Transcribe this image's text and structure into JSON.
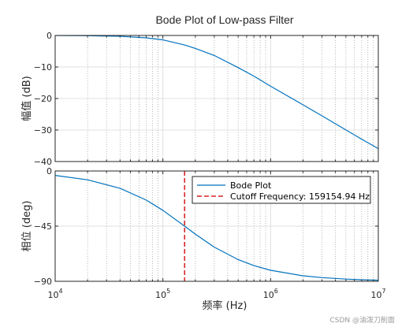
{
  "chart_data": [
    {
      "type": "line",
      "title": "Bode Plot of Low-pass Filter",
      "ylabel": "幅值 (dB)",
      "xscale": "log",
      "xlim": [
        10000,
        10000000
      ],
      "ylim": [
        -40,
        0
      ],
      "yticks": [
        0,
        -10,
        -20,
        -30,
        -40
      ],
      "ytick_labels": [
        "0",
        "−10",
        "−20",
        "−30",
        "−40"
      ],
      "grid": true,
      "series": [
        {
          "x": [
            10000,
            20000,
            40000,
            70000,
            100000,
            159154.94,
            200000,
            300000,
            500000,
            700000,
            1000000,
            2000000,
            3000000,
            5000000,
            7000000,
            10000000
          ],
          "y": [
            -0.02,
            -0.07,
            -0.27,
            -0.75,
            -1.4,
            -3.01,
            -4.1,
            -6.35,
            -10.2,
            -12.9,
            -16.1,
            -22.0,
            -25.5,
            -29.97,
            -32.9,
            -35.9
          ],
          "color": "#0072bd"
        }
      ]
    },
    {
      "type": "line",
      "ylabel": "相位 (deg)",
      "xlabel": "频率 (Hz)",
      "xscale": "log",
      "xlim": [
        10000,
        10000000
      ],
      "ylim": [
        -90,
        0
      ],
      "yticks": [
        0,
        -45,
        -90
      ],
      "ytick_labels": [
        "0",
        "−45",
        "−90"
      ],
      "xticks": [
        10000,
        100000,
        1000000,
        10000000
      ],
      "xtick_labels": [
        {
          "base": "10",
          "exp": "4"
        },
        {
          "base": "10",
          "exp": "5"
        },
        {
          "base": "10",
          "exp": "6"
        },
        {
          "base": "10",
          "exp": "7"
        }
      ],
      "grid": true,
      "legend": "top-right",
      "series": [
        {
          "name": "Bode Plot",
          "x": [
            10000,
            20000,
            40000,
            70000,
            100000,
            159154.94,
            200000,
            300000,
            500000,
            700000,
            1000000,
            2000000,
            3000000,
            5000000,
            7000000,
            10000000
          ],
          "y": [
            -3.6,
            -7.2,
            -14.1,
            -23.7,
            -32.1,
            -45.0,
            -51.5,
            -62.1,
            -72.3,
            -77.2,
            -81.0,
            -85.5,
            -87.0,
            -88.2,
            -88.7,
            -89.1
          ],
          "color": "#0072bd",
          "style": "solid"
        },
        {
          "name": "Cutoff Frequency: 159154.94 Hz",
          "x": [
            159154.94,
            159154.94
          ],
          "y": [
            0,
            -90
          ],
          "color": "#d62728",
          "style": "dashed"
        }
      ]
    }
  ],
  "watermark": "CSDN @油泼刀削面"
}
